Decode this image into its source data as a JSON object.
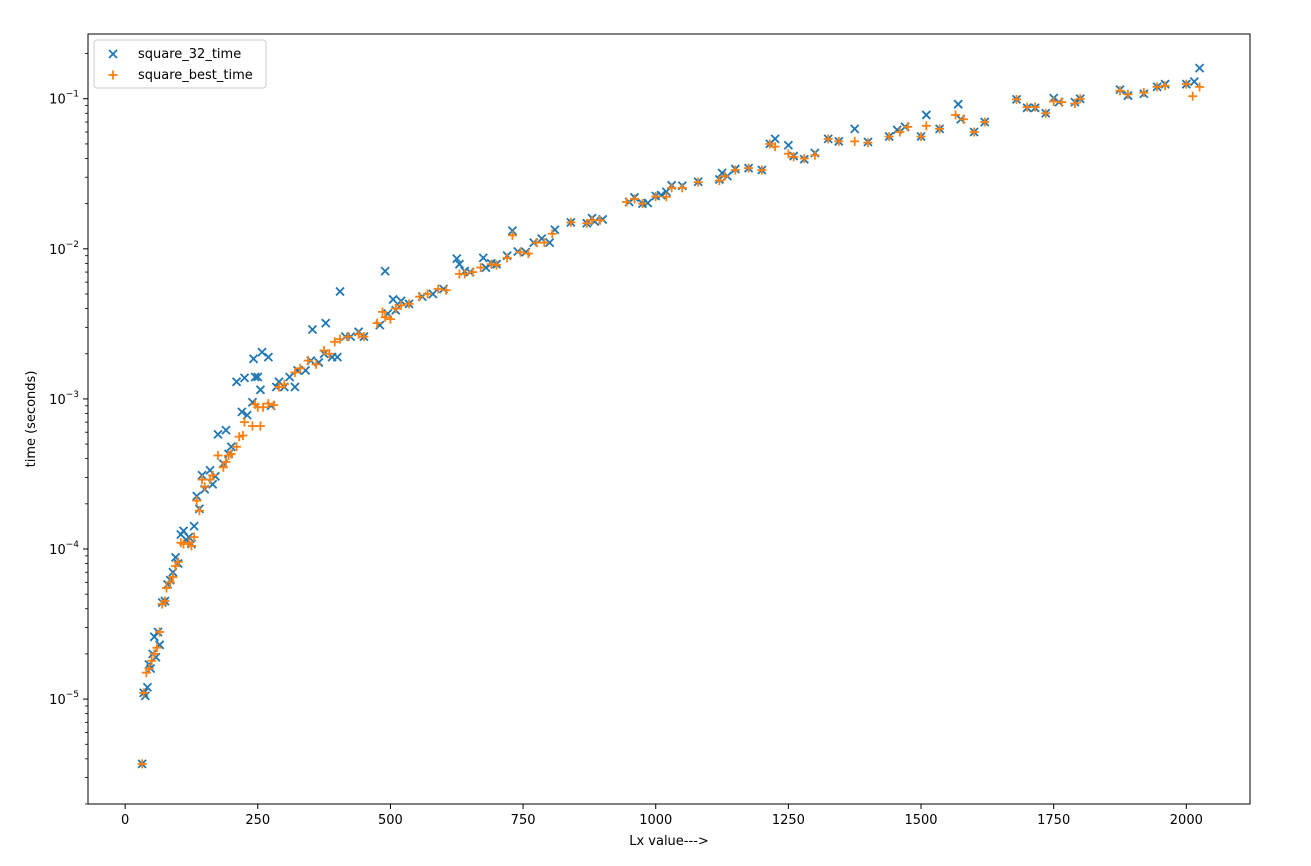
{
  "chart_data": {
    "type": "scatter",
    "xlabel": "Lx value--->",
    "ylabel": "time (seconds)",
    "xlim": [
      -70,
      2120
    ],
    "ylog": true,
    "ylim": [
      2e-06,
      0.27
    ],
    "x_ticks": [
      0,
      250,
      500,
      750,
      1000,
      1250,
      1500,
      1750,
      2000
    ],
    "x_tick_labels": [
      "0",
      "250",
      "500",
      "750",
      "1000",
      "1250",
      "1500",
      "1750",
      "2000"
    ],
    "y_ticks": [
      1e-05,
      0.0001,
      0.001,
      0.01,
      0.1
    ],
    "y_tick_labels": [
      {
        "base": "10",
        "exp": "−5"
      },
      {
        "base": "10",
        "exp": "−4"
      },
      {
        "base": "10",
        "exp": "−3"
      },
      {
        "base": "10",
        "exp": "−2"
      },
      {
        "base": "10",
        "exp": "−1"
      }
    ],
    "grid": false,
    "legend_position": "top-left",
    "series": [
      {
        "name": "square_32_time",
        "marker": "x",
        "color": "#1f77b4",
        "points": [
          [
            32,
            3.7e-06
          ],
          [
            35,
            1.1e-05
          ],
          [
            38,
            1.05e-05
          ],
          [
            42,
            1.2e-05
          ],
          [
            45,
            1.7e-05
          ],
          [
            48,
            1.6e-05
          ],
          [
            52,
            2e-05
          ],
          [
            55,
            2.6e-05
          ],
          [
            58,
            1.9e-05
          ],
          [
            62,
            2.8e-05
          ],
          [
            65,
            2.3e-05
          ],
          [
            70,
            4.4e-05
          ],
          [
            75,
            4.5e-05
          ],
          [
            80,
            5.8e-05
          ],
          [
            85,
            6.2e-05
          ],
          [
            90,
            7e-05
          ],
          [
            95,
            8.8e-05
          ],
          [
            100,
            8e-05
          ],
          [
            105,
            0.000125
          ],
          [
            110,
            0.000132
          ],
          [
            115,
            0.000115
          ],
          [
            120,
            0.00012
          ],
          [
            125,
            0.000108
          ],
          [
            130,
            0.000142
          ],
          [
            135,
            0.000225
          ],
          [
            140,
            0.000185
          ],
          [
            145,
            0.00031
          ],
          [
            150,
            0.00025
          ],
          [
            160,
            0.000335
          ],
          [
            165,
            0.00027
          ],
          [
            170,
            0.000305
          ],
          [
            175,
            0.00058
          ],
          [
            185,
            0.00037
          ],
          [
            190,
            0.00062
          ],
          [
            195,
            0.00043
          ],
          [
            200,
            0.00048
          ],
          [
            210,
            0.0013
          ],
          [
            220,
            0.00082
          ],
          [
            225,
            0.00138
          ],
          [
            230,
            0.00078
          ],
          [
            240,
            0.00095
          ],
          [
            242,
            0.00185
          ],
          [
            245,
            0.0014
          ],
          [
            250,
            0.0014
          ],
          [
            255,
            0.00115
          ],
          [
            258,
            0.00205
          ],
          [
            270,
            0.0019
          ],
          [
            275,
            0.0009
          ],
          [
            285,
            0.0012
          ],
          [
            290,
            0.0013
          ],
          [
            300,
            0.0012
          ],
          [
            310,
            0.0014
          ],
          [
            320,
            0.0012
          ],
          [
            325,
            0.00155
          ],
          [
            340,
            0.00155
          ],
          [
            350,
            0.0018
          ],
          [
            353,
            0.0029
          ],
          [
            365,
            0.00175
          ],
          [
            375,
            0.002
          ],
          [
            378,
            0.0032
          ],
          [
            390,
            0.0019
          ],
          [
            400,
            0.0019
          ],
          [
            405,
            0.0052
          ],
          [
            415,
            0.0026
          ],
          [
            425,
            0.0026
          ],
          [
            440,
            0.0028
          ],
          [
            450,
            0.0026
          ],
          [
            480,
            0.0031
          ],
          [
            490,
            0.0071
          ],
          [
            495,
            0.0037
          ],
          [
            505,
            0.0046
          ],
          [
            510,
            0.0039
          ],
          [
            520,
            0.0045
          ],
          [
            535,
            0.0043
          ],
          [
            560,
            0.0048
          ],
          [
            580,
            0.005
          ],
          [
            600,
            0.0054
          ],
          [
            625,
            0.0086
          ],
          [
            630,
            0.0079
          ],
          [
            640,
            0.0071
          ],
          [
            650,
            0.007
          ],
          [
            675,
            0.0087
          ],
          [
            680,
            0.0075
          ],
          [
            690,
            0.008
          ],
          [
            700,
            0.0079
          ],
          [
            720,
            0.009
          ],
          [
            730,
            0.0132
          ],
          [
            740,
            0.0096
          ],
          [
            755,
            0.0095
          ],
          [
            770,
            0.011
          ],
          [
            785,
            0.0117
          ],
          [
            800,
            0.011
          ],
          [
            810,
            0.0134
          ],
          [
            840,
            0.015
          ],
          [
            870,
            0.0148
          ],
          [
            880,
            0.016
          ],
          [
            885,
            0.0152
          ],
          [
            900,
            0.0157
          ],
          [
            950,
            0.0205
          ],
          [
            960,
            0.022
          ],
          [
            975,
            0.02
          ],
          [
            985,
            0.0202
          ],
          [
            1000,
            0.0225
          ],
          [
            1010,
            0.0228
          ],
          [
            1020,
            0.024
          ],
          [
            1030,
            0.0265
          ],
          [
            1050,
            0.0263
          ],
          [
            1080,
            0.028
          ],
          [
            1120,
            0.029
          ],
          [
            1125,
            0.032
          ],
          [
            1135,
            0.0305
          ],
          [
            1150,
            0.034
          ],
          [
            1175,
            0.0345
          ],
          [
            1200,
            0.0335
          ],
          [
            1215,
            0.05
          ],
          [
            1225,
            0.054
          ],
          [
            1250,
            0.049
          ],
          [
            1260,
            0.0415
          ],
          [
            1280,
            0.0395
          ],
          [
            1300,
            0.0435
          ],
          [
            1325,
            0.054
          ],
          [
            1345,
            0.052
          ],
          [
            1375,
            0.063
          ],
          [
            1400,
            0.0515
          ],
          [
            1440,
            0.056
          ],
          [
            1455,
            0.062
          ],
          [
            1470,
            0.065
          ],
          [
            1500,
            0.056
          ],
          [
            1510,
            0.078
          ],
          [
            1535,
            0.063
          ],
          [
            1570,
            0.092
          ],
          [
            1575,
            0.073
          ],
          [
            1600,
            0.06
          ],
          [
            1620,
            0.07
          ],
          [
            1680,
            0.099
          ],
          [
            1700,
            0.087
          ],
          [
            1715,
            0.087
          ],
          [
            1735,
            0.08
          ],
          [
            1750,
            0.101
          ],
          [
            1760,
            0.095
          ],
          [
            1790,
            0.095
          ],
          [
            1800,
            0.1
          ],
          [
            1875,
            0.115
          ],
          [
            1890,
            0.105
          ],
          [
            1920,
            0.108
          ],
          [
            1945,
            0.12
          ],
          [
            1960,
            0.125
          ],
          [
            2000,
            0.125
          ],
          [
            2015,
            0.13
          ],
          [
            2025,
            0.16
          ]
        ]
      },
      {
        "name": "square_best_time",
        "marker": "+",
        "color": "#ff7f0e",
        "points": [
          [
            32,
            3.7e-06
          ],
          [
            35,
            1.1e-05
          ],
          [
            40,
            1.5e-05
          ],
          [
            45,
            1.6e-05
          ],
          [
            50,
            1.8e-05
          ],
          [
            55,
            2e-05
          ],
          [
            60,
            2.2e-05
          ],
          [
            65,
            2.8e-05
          ],
          [
            70,
            4.3e-05
          ],
          [
            75,
            4.5e-05
          ],
          [
            78,
            5.5e-05
          ],
          [
            85,
            6e-05
          ],
          [
            90,
            6.5e-05
          ],
          [
            95,
            7.7e-05
          ],
          [
            100,
            8.2e-05
          ],
          [
            105,
            0.00011
          ],
          [
            110,
            0.000108
          ],
          [
            120,
            0.00011
          ],
          [
            125,
            0.000105
          ],
          [
            130,
            0.00012
          ],
          [
            135,
            0.00021
          ],
          [
            140,
            0.00018
          ],
          [
            145,
            0.00029
          ],
          [
            150,
            0.00026
          ],
          [
            160,
            0.00029
          ],
          [
            165,
            0.00031
          ],
          [
            175,
            0.00042
          ],
          [
            185,
            0.00035
          ],
          [
            190,
            0.00038
          ],
          [
            195,
            0.00042
          ],
          [
            200,
            0.00043
          ],
          [
            210,
            0.00048
          ],
          [
            215,
            0.00056
          ],
          [
            222,
            0.00057
          ],
          [
            225,
            0.0007
          ],
          [
            240,
            0.00066
          ],
          [
            245,
            0.00092
          ],
          [
            250,
            0.00088
          ],
          [
            255,
            0.00066
          ],
          [
            260,
            0.00088
          ],
          [
            270,
            0.00093
          ],
          [
            280,
            0.00091
          ],
          [
            290,
            0.0012
          ],
          [
            300,
            0.00125
          ],
          [
            320,
            0.0015
          ],
          [
            330,
            0.0016
          ],
          [
            345,
            0.0018
          ],
          [
            360,
            0.0017
          ],
          [
            375,
            0.0021
          ],
          [
            385,
            0.002
          ],
          [
            395,
            0.0024
          ],
          [
            405,
            0.0025
          ],
          [
            420,
            0.0026
          ],
          [
            440,
            0.0027
          ],
          [
            450,
            0.0026
          ],
          [
            475,
            0.0032
          ],
          [
            485,
            0.0038
          ],
          [
            490,
            0.0035
          ],
          [
            500,
            0.0034
          ],
          [
            510,
            0.004
          ],
          [
            520,
            0.0042
          ],
          [
            535,
            0.0043
          ],
          [
            555,
            0.0048
          ],
          [
            570,
            0.005
          ],
          [
            590,
            0.0054
          ],
          [
            605,
            0.0053
          ],
          [
            630,
            0.0068
          ],
          [
            640,
            0.0068
          ],
          [
            655,
            0.007
          ],
          [
            670,
            0.0075
          ],
          [
            690,
            0.0079
          ],
          [
            700,
            0.0078
          ],
          [
            720,
            0.0087
          ],
          [
            730,
            0.0123
          ],
          [
            745,
            0.0095
          ],
          [
            760,
            0.0093
          ],
          [
            775,
            0.011
          ],
          [
            790,
            0.011
          ],
          [
            805,
            0.0126
          ],
          [
            840,
            0.015
          ],
          [
            870,
            0.0148
          ],
          [
            880,
            0.0155
          ],
          [
            895,
            0.0155
          ],
          [
            945,
            0.0205
          ],
          [
            960,
            0.0215
          ],
          [
            975,
            0.02
          ],
          [
            1000,
            0.0223
          ],
          [
            1020,
            0.0222
          ],
          [
            1030,
            0.0255
          ],
          [
            1050,
            0.0255
          ],
          [
            1080,
            0.0278
          ],
          [
            1120,
            0.0285
          ],
          [
            1130,
            0.0305
          ],
          [
            1150,
            0.0335
          ],
          [
            1175,
            0.0345
          ],
          [
            1200,
            0.0335
          ],
          [
            1215,
            0.05
          ],
          [
            1225,
            0.048
          ],
          [
            1250,
            0.043
          ],
          [
            1260,
            0.041
          ],
          [
            1280,
            0.04
          ],
          [
            1300,
            0.042
          ],
          [
            1325,
            0.054
          ],
          [
            1345,
            0.052
          ],
          [
            1375,
            0.052
          ],
          [
            1400,
            0.051
          ],
          [
            1440,
            0.056
          ],
          [
            1460,
            0.06
          ],
          [
            1475,
            0.065
          ],
          [
            1500,
            0.056
          ],
          [
            1510,
            0.066
          ],
          [
            1535,
            0.063
          ],
          [
            1565,
            0.078
          ],
          [
            1580,
            0.073
          ],
          [
            1600,
            0.06
          ],
          [
            1620,
            0.07
          ],
          [
            1680,
            0.099
          ],
          [
            1700,
            0.088
          ],
          [
            1715,
            0.088
          ],
          [
            1735,
            0.08
          ],
          [
            1750,
            0.096
          ],
          [
            1765,
            0.095
          ],
          [
            1790,
            0.093
          ],
          [
            1800,
            0.1
          ],
          [
            1875,
            0.113
          ],
          [
            1890,
            0.107
          ],
          [
            1920,
            0.11
          ],
          [
            1945,
            0.12
          ],
          [
            1960,
            0.122
          ],
          [
            2000,
            0.125
          ],
          [
            2012,
            0.104
          ],
          [
            2025,
            0.12
          ]
        ]
      }
    ]
  }
}
